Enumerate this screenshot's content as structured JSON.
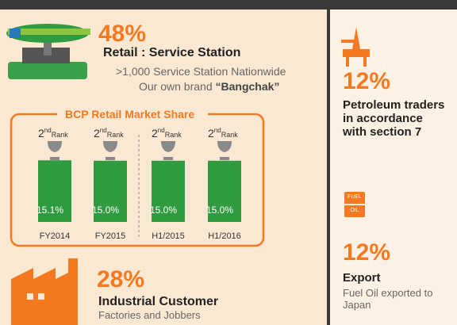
{
  "retail": {
    "percent": "48%",
    "title": "Retail : Service Station",
    "line1": ">1,000 Service Station Nationwide",
    "line2_prefix": "Our own brand ",
    "line2_brand": "“Bangchak”"
  },
  "market_share": {
    "title": "BCP Retail Market Share",
    "categories": [
      "FY2014",
      "FY2015",
      "H1/2015",
      "H1/2016"
    ],
    "values": [
      15.1,
      15.0,
      15.0,
      15.0
    ],
    "value_labels": [
      "15.1%",
      "15.0%",
      "15.0%",
      "15.0%"
    ],
    "ranks": [
      {
        "number": "2",
        "suffix": "nd",
        "word": "Rank"
      },
      {
        "number": "2",
        "suffix": "nd",
        "word": "Rank"
      },
      {
        "number": "2",
        "suffix": "nd",
        "word": "Rank"
      },
      {
        "number": "2",
        "suffix": "nd",
        "word": "Rank"
      }
    ],
    "color": "#2f9a3f"
  },
  "industrial": {
    "percent": "28%",
    "title": "Industrial Customer",
    "subtitle": "Factories and Jobbers"
  },
  "traders": {
    "percent": "12%",
    "title": "Petroleum traders in accordance with section 7"
  },
  "export": {
    "icon_top": "FUEL",
    "icon_bottom": "OIL",
    "percent": "12%",
    "title": "Export",
    "subtitle": "Fuel Oil exported to Japan"
  }
}
